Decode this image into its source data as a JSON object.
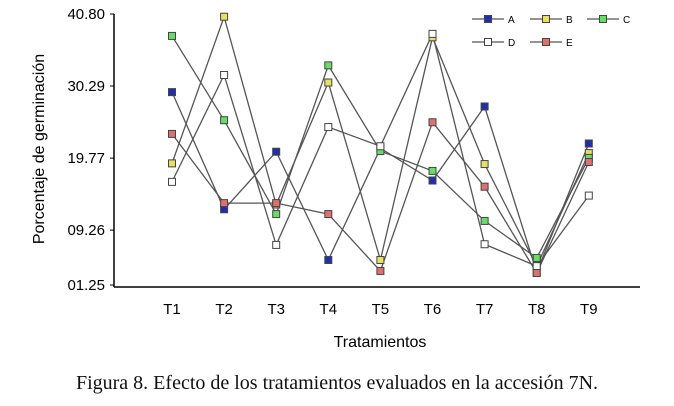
{
  "chart_data": {
    "type": "line",
    "title": "",
    "xlabel": "Tratamientos",
    "ylabel": "Porcentaje de germinación",
    "ylim": [
      1.25,
      40.8
    ],
    "yticks": [
      "01.25",
      "09.26",
      "19.77",
      "30.29",
      "40.80"
    ],
    "ytick_values": [
      1.25,
      9.26,
      19.77,
      30.29,
      40.8
    ],
    "categories": [
      "T1",
      "T2",
      "T3",
      "T4",
      "T5",
      "T6",
      "T7",
      "T8",
      "T9"
    ],
    "legend_position": "top-right",
    "grid": false,
    "series": [
      {
        "name": "A",
        "color": "#1f2fb0",
        "values": [
          29.4,
          12.3,
          20.7,
          4.9,
          21.2,
          16.5,
          27.3,
          3.1,
          21.9
        ]
      },
      {
        "name": "B",
        "color": "#e8e060",
        "values": [
          19.0,
          40.4,
          13.0,
          30.8,
          4.9,
          37.4,
          18.9,
          4.0,
          20.5
        ]
      },
      {
        "name": "C",
        "color": "#66dd66",
        "values": [
          37.6,
          25.3,
          11.6,
          33.3,
          20.8,
          17.9,
          10.6,
          5.2,
          19.8
        ]
      },
      {
        "name": "D",
        "color": "#ffffff",
        "values": [
          16.3,
          31.9,
          7.1,
          24.3,
          21.5,
          37.9,
          7.2,
          4.0,
          14.3
        ]
      },
      {
        "name": "E",
        "color": "#e07070",
        "values": [
          23.3,
          13.2,
          13.2,
          11.6,
          3.3,
          25.0,
          15.6,
          3.0,
          19.2
        ]
      }
    ]
  },
  "caption": "Figura 8. Efecto de los tratamientos evaluados en la accesión 7N."
}
